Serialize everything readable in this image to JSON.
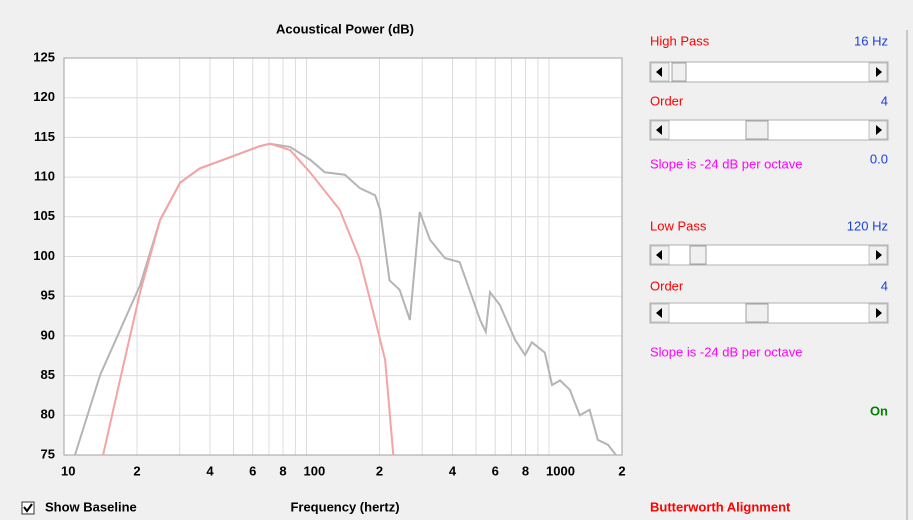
{
  "chart_data": {
    "type": "line",
    "title": "Acoustical Power (dB)",
    "xlabel": "Frequency (hertz)",
    "log_x": true,
    "grid": true,
    "xlim": [
      10,
      2000
    ],
    "ylim": [
      75,
      125
    ],
    "xticks": [
      10,
      {
        "value": 20,
        "label": "2"
      },
      {
        "value": 40,
        "label": "4"
      },
      {
        "value": 60,
        "label": "6"
      },
      {
        "value": 80,
        "label": "8"
      },
      100,
      {
        "value": 200,
        "label": "2"
      },
      {
        "value": 400,
        "label": "4"
      },
      {
        "value": 600,
        "label": "6"
      },
      {
        "value": 800,
        "label": "8"
      },
      1000,
      {
        "value": 2000,
        "label": "2"
      }
    ],
    "x_minor_ticks": [
      30,
      50,
      70,
      90,
      300,
      500,
      700,
      900
    ],
    "yticks": [
      75,
      80,
      85,
      90,
      95,
      100,
      105,
      110,
      115,
      120,
      125
    ],
    "series": [
      {
        "color": "#b4b4b4",
        "x": [
          11.1,
          14.1,
          20.6,
          24.9,
          30.1,
          36.3,
          48.3,
          64.3,
          70.7,
          85.6,
          103.4,
          119,
          144,
          166,
          192,
          201,
          220,
          242,
          267,
          293,
          323,
          372,
          428,
          470,
          520,
          549,
          571,
          627,
          725,
          797,
          850,
          961,
          1030,
          1110,
          1220,
          1340,
          1470,
          1590,
          1750,
          1890
        ],
        "values": [
          75,
          85.1,
          96.4,
          104.6,
          109.3,
          111.1,
          112.5,
          113.9,
          114.2,
          113.8,
          112.2,
          110.6,
          110.3,
          108.6,
          107.7,
          105.9,
          97.0,
          95.8,
          92.0,
          105.6,
          102.1,
          99.8,
          99.3,
          95.8,
          92.0,
          90.5,
          95.5,
          93.9,
          89.5,
          87.6,
          89.2,
          87.9,
          83.8,
          84.4,
          83.2,
          80.0,
          80.7,
          76.9,
          76.3,
          75
        ]
      },
      {
        "color": "#f5a3a3",
        "x": [
          14.5,
          17.0,
          20.6,
          24.9,
          30.1,
          36.3,
          48.3,
          64.3,
          70.7,
          85.6,
          103.4,
          137,
          166,
          192,
          211,
          228
        ],
        "values": [
          75,
          84.4,
          95.5,
          104.6,
          109.3,
          111.1,
          112.5,
          113.9,
          114.2,
          113.4,
          110.6,
          105.9,
          99.6,
          92.0,
          87.0,
          75
        ]
      }
    ]
  },
  "controls": {
    "high_pass": {
      "label": "High Pass",
      "value": "16 Hz"
    },
    "high_pass_order": {
      "label": "Order",
      "value": 4
    },
    "high_pass_slope": {
      "text": "Slope is -24 dB per octave",
      "value": "0.0"
    },
    "low_pass": {
      "label": "Low Pass",
      "value": "120 Hz"
    },
    "low_pass_order": {
      "label": "Order",
      "value": 4
    },
    "low_pass_slope": {
      "text": "Slope is -24 dB per octave"
    },
    "status": "On",
    "show_baseline": {
      "label": "Show Baseline",
      "checked": true
    },
    "alignment": "Butterworth Alignment"
  }
}
